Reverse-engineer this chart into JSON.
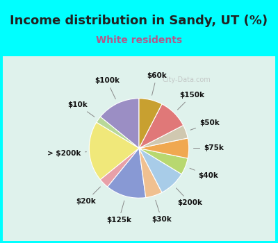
{
  "title": "Income distribution in Sandy, UT (%)",
  "subtitle": "White residents",
  "background_color": "#00FFFF",
  "chart_bg": "#dff2ec",
  "labels": [
    "$100k",
    "$10k",
    "> $200k",
    "$20k",
    "$125k",
    "$30k",
    "$200k",
    "$40k",
    "$75k",
    "$50k",
    "$150k",
    "$60k"
  ],
  "values": [
    13,
    2,
    18,
    3,
    12,
    5,
    8,
    5,
    6,
    4,
    9,
    7
  ],
  "colors": [
    "#9b8ec4",
    "#b8d898",
    "#f0e87a",
    "#e8a0a8",
    "#8899d4",
    "#f0c090",
    "#a8cce8",
    "#b8d870",
    "#f0a850",
    "#d0c8b0",
    "#e07878",
    "#c8a030"
  ],
  "watermark": "City-Data.com",
  "title_fontsize": 13,
  "subtitle_fontsize": 10,
  "startangle": 90,
  "label_fontsize": 7.5
}
